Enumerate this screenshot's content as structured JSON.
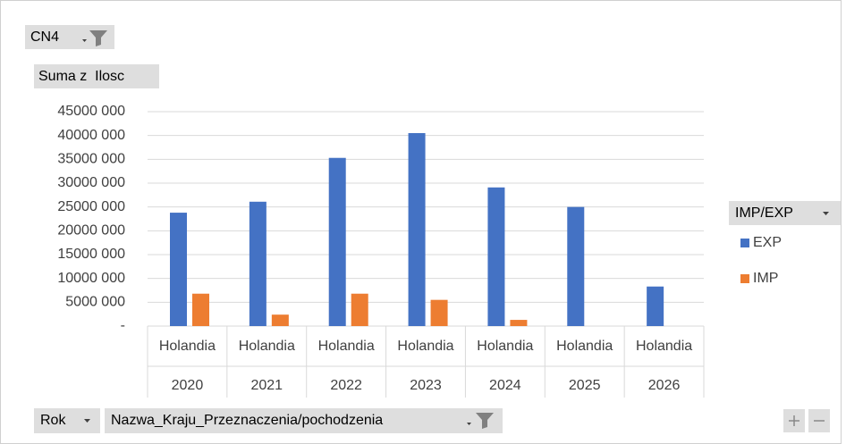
{
  "chart_data": {
    "type": "bar",
    "filter_field": "CN4",
    "value_field": "Suma z  Ilosc",
    "legend_field": "IMP/EXP",
    "axis_fields": [
      "Rok",
      "Nazwa_Kraju_Przeznaczenia/pochodzenia"
    ],
    "categories": [
      "2020",
      "2021",
      "2022",
      "2023",
      "2024",
      "2025",
      "2026"
    ],
    "category_sublabels": [
      "Holandia",
      "Holandia",
      "Holandia",
      "Holandia",
      "Holandia",
      "Holandia",
      "Holandia"
    ],
    "series": [
      {
        "name": "EXP",
        "color": "#4472c4",
        "values": [
          23800000,
          26100000,
          35300000,
          40500000,
          29100000,
          25000000,
          8300000
        ]
      },
      {
        "name": "IMP",
        "color": "#ed7d31",
        "values": [
          6800000,
          2400000,
          6800000,
          5500000,
          1300000,
          null,
          null
        ]
      }
    ],
    "ylim": [
      0,
      45000000
    ],
    "yticks": [
      {
        "value": 0,
        "label": "-"
      },
      {
        "value": 5000000,
        "label": "5000 000"
      },
      {
        "value": 10000000,
        "label": "10000 000"
      },
      {
        "value": 15000000,
        "label": "15000 000"
      },
      {
        "value": 20000000,
        "label": "20000 000"
      },
      {
        "value": 25000000,
        "label": "25000 000"
      },
      {
        "value": 30000000,
        "label": "30000 000"
      },
      {
        "value": 35000000,
        "label": "35000 000"
      },
      {
        "value": 40000000,
        "label": "40000 000"
      },
      {
        "value": 45000000,
        "label": "45000 000"
      }
    ],
    "grid": true,
    "legend": "right"
  }
}
